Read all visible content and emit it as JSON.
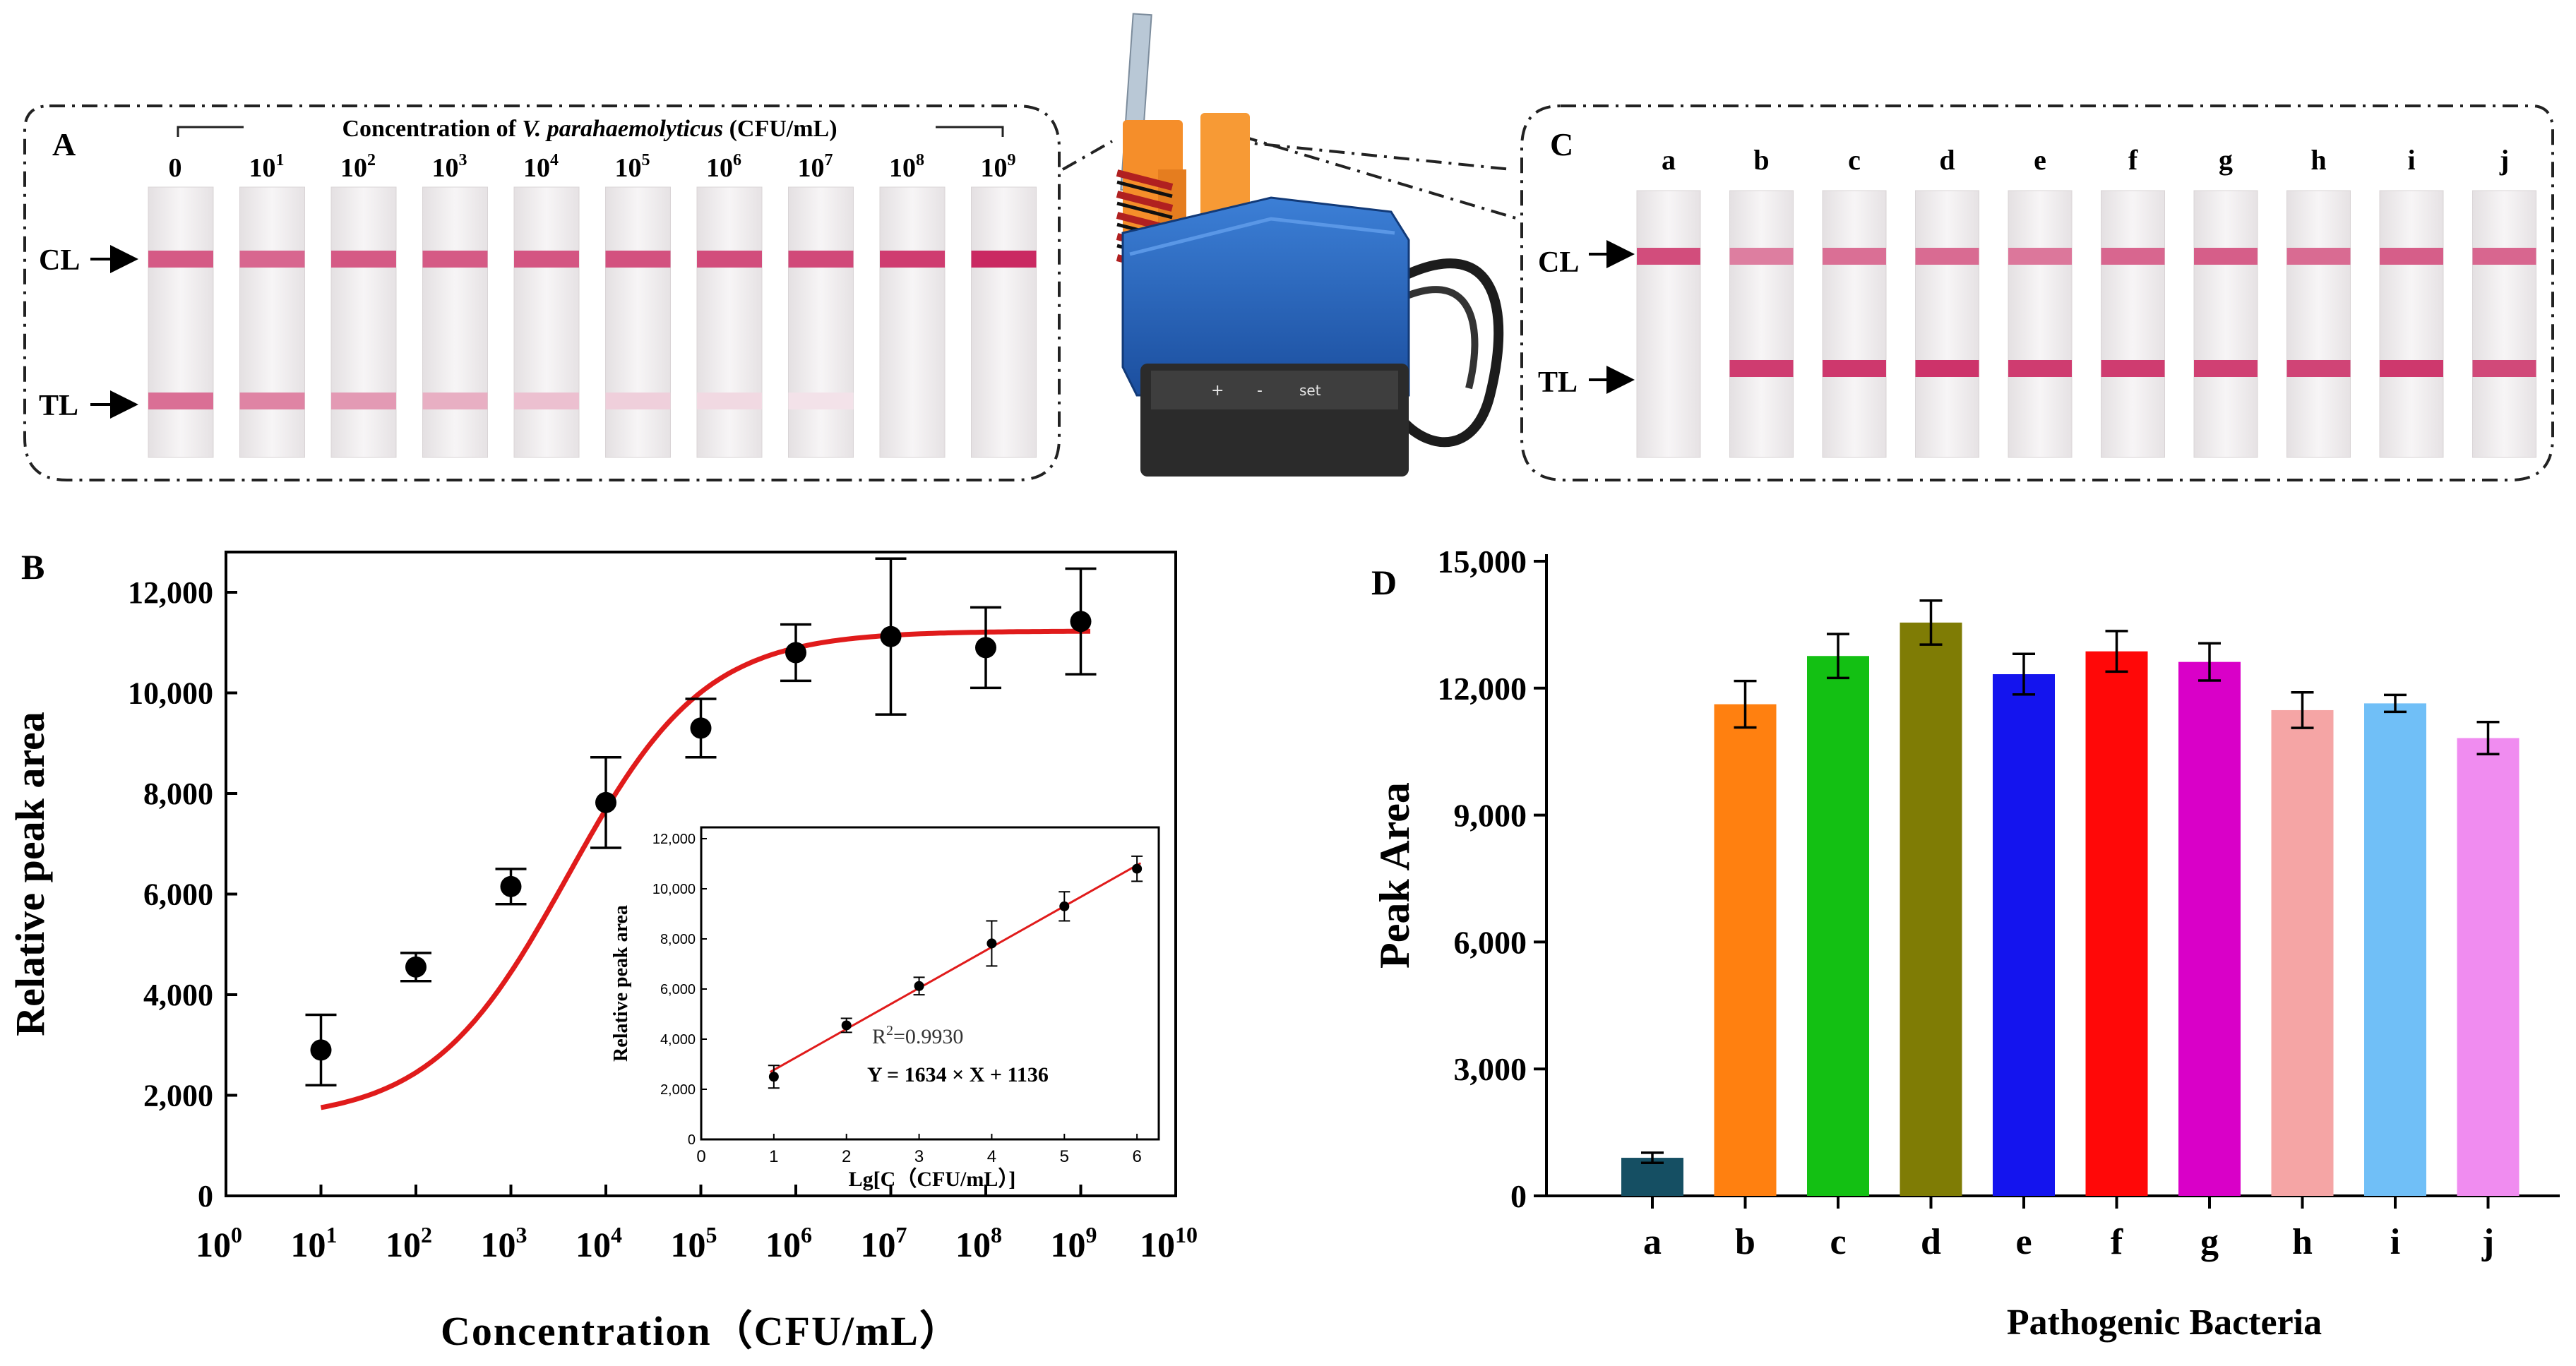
{
  "panels": {
    "A": {
      "letter": "A",
      "header_prefix": "Concentration of ",
      "header_italic": "V. parahaemolyticus",
      "header_suffix": " (CFU/mL)",
      "strip_labels": [
        {
          "base": "0",
          "exp": ""
        },
        {
          "base": "10",
          "exp": "1"
        },
        {
          "base": "10",
          "exp": "2"
        },
        {
          "base": "10",
          "exp": "3"
        },
        {
          "base": "10",
          "exp": "4"
        },
        {
          "base": "10",
          "exp": "5"
        },
        {
          "base": "10",
          "exp": "6"
        },
        {
          "base": "10",
          "exp": "7"
        },
        {
          "base": "10",
          "exp": "8"
        },
        {
          "base": "10",
          "exp": "9"
        }
      ],
      "cl_label": "CL",
      "tl_label": "TL",
      "cl_intensity": [
        0.72,
        0.66,
        0.72,
        0.72,
        0.74,
        0.76,
        0.78,
        0.8,
        0.86,
        0.95
      ],
      "tl_intensity": [
        0.62,
        0.52,
        0.42,
        0.32,
        0.24,
        0.17,
        0.12,
        0.08,
        0.0,
        0.0
      ]
    },
    "C": {
      "letter": "C",
      "strip_labels": [
        "a",
        "b",
        "c",
        "d",
        "e",
        "f",
        "g",
        "h",
        "i",
        "j"
      ],
      "cl_label": "CL",
      "tl_label": "TL",
      "cl_intensity": [
        0.78,
        0.55,
        0.62,
        0.64,
        0.58,
        0.66,
        0.7,
        0.64,
        0.7,
        0.66
      ],
      "tl_intensity": [
        0.0,
        0.86,
        0.88,
        0.9,
        0.86,
        0.86,
        0.84,
        0.82,
        0.88,
        0.8
      ]
    },
    "device": {
      "button_labels": [
        "+",
        "-",
        "set"
      ]
    }
  },
  "chart_data": [
    {
      "panel": "B",
      "type": "scatter",
      "title": "",
      "xlabel": "Concentration（CFU/mL）",
      "ylabel": "Relative peak area",
      "x_scale": "log10",
      "x_exponents": [
        0,
        1,
        2,
        3,
        4,
        5,
        6,
        7,
        8,
        9,
        10
      ],
      "x_tick_base": "10",
      "ylim": [
        0,
        12800
      ],
      "yticks": [
        0,
        2000,
        4000,
        6000,
        8000,
        10000,
        12000
      ],
      "ytick_labels": [
        "0",
        "2,000",
        "4,000",
        "6,000",
        "8,000",
        "10,000",
        "12,000"
      ],
      "series": [
        {
          "name": "measured",
          "log_x": [
            1,
            2,
            3,
            4,
            5,
            6,
            7,
            8,
            9
          ],
          "y": [
            2900,
            4550,
            6150,
            7820,
            9300,
            10800,
            11120,
            10900,
            11420
          ],
          "err": [
            700,
            280,
            350,
            900,
            580,
            560,
            1550,
            800,
            1050
          ]
        }
      ],
      "fit": {
        "type": "sigmoid",
        "color": "#e01b1b",
        "bottom": 1500,
        "top": 11230,
        "log_x0": 3.6,
        "width": 0.72
      }
    },
    {
      "panel": "B-inset",
      "type": "scatter",
      "xlabel": "Lg[C（CFU/mL）]",
      "ylabel": "Relative peak area",
      "xlim": [
        0,
        6.3
      ],
      "xticks": [
        0,
        1,
        2,
        3,
        4,
        5,
        6
      ],
      "ylim": [
        0,
        12000
      ],
      "yticks": [
        0,
        2000,
        4000,
        6000,
        8000,
        10000,
        12000
      ],
      "ytick_labels": [
        "0",
        "2,000",
        "4,000",
        "6,000",
        "8,000",
        "10,000",
        "12,000"
      ],
      "series": [
        {
          "name": "linear range",
          "x": [
            1,
            2,
            3,
            4,
            5,
            6
          ],
          "y": [
            2500,
            4550,
            6120,
            7820,
            9300,
            10800
          ],
          "err": [
            450,
            280,
            350,
            900,
            580,
            500
          ]
        }
      ],
      "fit": {
        "type": "linear",
        "slope": 1634,
        "intercept": 1136,
        "color": "#e01b1b"
      },
      "r2_prefix": "R",
      "r2_exp": "2",
      "r2_value": "=0.9930",
      "equation": "Y = 1634 × X + 1136"
    },
    {
      "panel": "D",
      "type": "bar",
      "title": "",
      "xlabel": "Pathogenic Bacteria",
      "ylabel": "Peak Area",
      "categories": [
        "a",
        "b",
        "c",
        "d",
        "e",
        "f",
        "g",
        "h",
        "i",
        "j"
      ],
      "values": [
        900,
        11620,
        12760,
        13550,
        12330,
        12870,
        12620,
        11480,
        11640,
        10820
      ],
      "errors": [
        120,
        550,
        520,
        520,
        480,
        480,
        440,
        420,
        200,
        380
      ],
      "colors": [
        "#154f63",
        "#ff8010",
        "#13c013",
        "#7f7c05",
        "#1414ee",
        "#ff0808",
        "#d900c8",
        "#f5a5a5",
        "#70bff7",
        "#f08cf0"
      ],
      "ylim": [
        0,
        15000
      ],
      "yticks": [
        0,
        3000,
        6000,
        9000,
        12000,
        15000
      ],
      "ytick_labels": [
        "0",
        "3,000",
        "6,000",
        "9,000",
        "12,000",
        "15,000"
      ]
    }
  ]
}
